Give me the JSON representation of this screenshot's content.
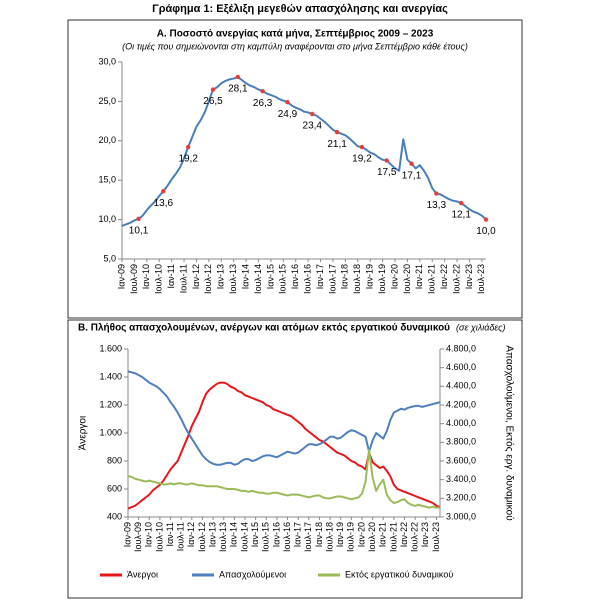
{
  "title": "Γράφημα 1: Εξέλιξη μεγεθών απασχόλησης και ανεργίας",
  "chart_data": [
    {
      "type": "line",
      "title": "Α. Ποσοστό ανεργίας κατά μήνα, Σεπτέμβριος 2009 – 2023",
      "subtitle": "(Οι τιμές που σημειώνονται στη καμπύλη αναφέρονται στο μήνα Σεπτέμβριο κάθε έτους)",
      "categories": [
        "Ιαν-09",
        null,
        null,
        "Ιουλ-09",
        null,
        null,
        "Ιαν-10",
        null,
        null,
        "Ιουλ-10",
        null,
        null,
        "Ιαν-11",
        null,
        null,
        "Ιουλ-11",
        null,
        null,
        "Ιαν-12",
        null,
        null,
        "Ιουλ-12",
        null,
        null,
        "Ιαν-13",
        null,
        null,
        "Ιουλ-13",
        null,
        null,
        "Ιαν-14",
        null,
        null,
        "Ιουλ-14",
        null,
        null,
        "Ιαν-15",
        null,
        null,
        "Ιουλ-15",
        null,
        null,
        "Ιαν-16",
        null,
        null,
        "Ιουλ-16",
        null,
        null,
        "Ιαν-17",
        null,
        null,
        "Ιουλ-17",
        null,
        null,
        "Ιαν-18",
        null,
        null,
        "Ιουλ-18",
        null,
        null,
        "Ιαν-19",
        null,
        null,
        "Ιουλ-19",
        null,
        null,
        "Ιαν-20",
        null,
        null,
        "Ιουλ-20",
        null,
        null,
        "Ιαν-21",
        null,
        null,
        "Ιουλ-21",
        null,
        null,
        "Ιαν-22",
        null,
        null,
        "Ιουλ-22",
        null,
        null,
        "Ιαν-23",
        null,
        null,
        "Ιουλ-23",
        null
      ],
      "series": [
        {
          "color": "#4a7ebb",
          "marker_color": "#e0403a",
          "values": [
            9.2,
            9.4,
            9.6,
            9.9,
            10.1,
            10.5,
            11.2,
            11.8,
            12.3,
            13.0,
            13.6,
            14.3,
            15.1,
            15.8,
            16.6,
            17.8,
            19.2,
            20.5,
            21.8,
            22.6,
            23.6,
            25.0,
            26.5,
            26.8,
            27.3,
            27.6,
            27.8,
            27.9,
            28.1,
            27.7,
            27.3,
            27.0,
            26.8,
            26.5,
            26.3,
            26.0,
            25.8,
            25.6,
            25.3,
            25.1,
            24.9,
            24.5,
            24.2,
            24.0,
            23.7,
            23.6,
            23.4,
            23.2,
            22.8,
            22.4,
            21.9,
            21.4,
            21.1,
            20.9,
            20.7,
            20.3,
            19.8,
            19.3,
            19.2,
            18.9,
            18.5,
            18.3,
            17.9,
            17.6,
            17.5,
            17.0,
            16.5,
            16.2,
            20.2,
            17.6,
            17.1,
            16.5,
            16.9,
            16.2,
            15.3,
            14.0,
            13.3,
            13.2,
            12.9,
            12.6,
            12.4,
            12.3,
            12.1,
            11.7,
            11.3,
            11.0,
            10.8,
            10.5,
            10.0
          ],
          "value_labels": [
            null,
            null,
            null,
            null,
            "10,1",
            null,
            null,
            null,
            null,
            null,
            "13,6",
            null,
            null,
            null,
            null,
            null,
            "19,2",
            null,
            null,
            null,
            null,
            null,
            "26,5",
            null,
            null,
            null,
            null,
            null,
            "28,1",
            null,
            null,
            null,
            null,
            null,
            "26,3",
            null,
            null,
            null,
            null,
            null,
            "24,9",
            null,
            null,
            null,
            null,
            null,
            "23,4",
            null,
            null,
            null,
            null,
            null,
            "21,1",
            null,
            null,
            null,
            null,
            null,
            "19,2",
            null,
            null,
            null,
            null,
            null,
            "17,5",
            null,
            null,
            null,
            null,
            null,
            "17,1",
            null,
            null,
            null,
            null,
            null,
            "13,3",
            null,
            null,
            null,
            null,
            null,
            "12,1",
            null,
            null,
            null,
            null,
            null,
            "10,0"
          ]
        }
      ],
      "ylim": [
        5,
        30
      ],
      "yticks": [
        {
          "value": 5,
          "label": "5,0"
        },
        {
          "value": 10,
          "label": "10,0"
        },
        {
          "value": 15,
          "label": "15,0"
        },
        {
          "value": 20,
          "label": "20,0"
        },
        {
          "value": 25,
          "label": "25,0"
        },
        {
          "value": 30,
          "label": "30,0"
        }
      ],
      "grid": false
    },
    {
      "type": "line",
      "title": "Β. Πλήθος απασχολουμένων, ανέργων και ατόμων εκτός εργατικού δυναμικού",
      "subtitle": "(σε χιλιάδες)",
      "ylabel": "Άνεργοι",
      "y2label": "Απασχολούμενοι, Εκτός εργ. δυναμικού",
      "categories": [
        "Ιαν-09",
        null,
        null,
        "Ιουλ-09",
        null,
        null,
        "Ιαν-10",
        null,
        null,
        "Ιουλ-10",
        null,
        null,
        "Ιαν-11",
        null,
        null,
        "Ιουλ-11",
        null,
        null,
        "Ιαν-12",
        null,
        null,
        "Ιουλ-12",
        null,
        null,
        "Ιαν-13",
        null,
        null,
        "Ιουλ-13",
        null,
        null,
        "Ιαν-14",
        null,
        null,
        "Ιουλ-14",
        null,
        null,
        "Ιαν-15",
        null,
        null,
        "Ιουλ-15",
        null,
        null,
        "Ιαν-16",
        null,
        null,
        "Ιουλ-16",
        null,
        null,
        "Ιαν-17",
        null,
        null,
        "Ιουλ-17",
        null,
        null,
        "Ιαν-18",
        null,
        null,
        "Ιουλ-18",
        null,
        null,
        "Ιαν-19",
        null,
        null,
        "Ιουλ-19",
        null,
        null,
        "Ιαν-20",
        null,
        null,
        "Ιουλ-20",
        null,
        null,
        "Ιαν-21",
        null,
        null,
        "Ιουλ-21",
        null,
        null,
        "Ιαν-22",
        null,
        null,
        "Ιουλ-22",
        null,
        null,
        "Ιαν-23",
        null,
        null,
        "Ιουλ-23",
        null
      ],
      "series": [
        {
          "name": "Άνεργοι",
          "color": "#e8161b",
          "values": [
            460,
            470,
            480,
            500,
            520,
            540,
            560,
            590,
            610,
            630,
            660,
            700,
            740,
            770,
            800,
            860,
            920,
            980,
            1050,
            1100,
            1150,
            1220,
            1280,
            1310,
            1330,
            1350,
            1360,
            1360,
            1350,
            1330,
            1320,
            1300,
            1290,
            1270,
            1260,
            1250,
            1240,
            1230,
            1220,
            1200,
            1190,
            1170,
            1160,
            1150,
            1140,
            1130,
            1120,
            1100,
            1080,
            1060,
            1030,
            1010,
            990,
            970,
            950,
            940,
            920,
            900,
            880,
            860,
            850,
            840,
            820,
            800,
            790,
            770,
            760,
            740,
            860,
            790,
            770,
            750,
            760,
            730,
            690,
            630,
            600,
            590,
            580,
            570,
            560,
            550,
            540,
            530,
            520,
            510,
            500,
            480,
            470
          ]
        },
        {
          "name": "Απασχολούμενοι",
          "color": "#4f7fbf",
          "axis": "y2",
          "values": [
            4560,
            4550,
            4540,
            4520,
            4500,
            4470,
            4440,
            4420,
            4400,
            4370,
            4330,
            4290,
            4230,
            4180,
            4120,
            4050,
            3970,
            3900,
            3840,
            3780,
            3720,
            3660,
            3620,
            3590,
            3570,
            3560,
            3560,
            3570,
            3580,
            3580,
            3560,
            3570,
            3600,
            3620,
            3620,
            3600,
            3610,
            3630,
            3650,
            3660,
            3660,
            3650,
            3640,
            3660,
            3680,
            3700,
            3690,
            3680,
            3690,
            3720,
            3750,
            3780,
            3780,
            3770,
            3780,
            3800,
            3830,
            3860,
            3860,
            3840,
            3850,
            3880,
            3910,
            3930,
            3920,
            3900,
            3880,
            3860,
            3700,
            3820,
            3900,
            3870,
            3840,
            3920,
            4040,
            4120,
            4140,
            4160,
            4150,
            4170,
            4180,
            4190,
            4190,
            4180,
            4190,
            4200,
            4210,
            4220,
            4230
          ]
        },
        {
          "name": "Εκτός εργατικού δυναμικού",
          "color": "#9bbb59",
          "axis": "y2",
          "values": [
            3440,
            3430,
            3410,
            3400,
            3390,
            3380,
            3390,
            3380,
            3370,
            3360,
            3350,
            3350,
            3360,
            3350,
            3360,
            3360,
            3350,
            3350,
            3360,
            3350,
            3340,
            3340,
            3330,
            3330,
            3330,
            3330,
            3320,
            3310,
            3300,
            3300,
            3300,
            3290,
            3280,
            3280,
            3270,
            3280,
            3270,
            3260,
            3260,
            3250,
            3250,
            3260,
            3260,
            3250,
            3240,
            3230,
            3240,
            3240,
            3240,
            3230,
            3220,
            3210,
            3220,
            3230,
            3230,
            3210,
            3200,
            3200,
            3210,
            3220,
            3220,
            3210,
            3200,
            3190,
            3200,
            3210,
            3250,
            3380,
            3720,
            3420,
            3280,
            3350,
            3400,
            3240,
            3180,
            3150,
            3160,
            3180,
            3190,
            3150,
            3130,
            3120,
            3130,
            3120,
            3110,
            3100,
            3110,
            3100,
            3100
          ]
        }
      ],
      "ylim": [
        400,
        1600
      ],
      "yticks": [
        400,
        600,
        800,
        {
          "value": 1000,
          "label": "1.000"
        },
        {
          "value": 1200,
          "label": "1.200"
        },
        {
          "value": 1400,
          "label": "1.400"
        },
        {
          "value": 1600,
          "label": "1.600"
        }
      ],
      "y2lim": [
        3000,
        4800
      ],
      "y2ticks": [
        {
          "value": 3000,
          "label": "3.000,0"
        },
        {
          "value": 3200,
          "label": "3.200,0"
        },
        {
          "value": 3400,
          "label": "3.400,0"
        },
        {
          "value": 3600,
          "label": "3.600,0"
        },
        {
          "value": 3800,
          "label": "3.800,0"
        },
        {
          "value": 4000,
          "label": "4.000,0"
        },
        {
          "value": 4200,
          "label": "4.200,0"
        },
        {
          "value": 4400,
          "label": "4.400,0"
        },
        {
          "value": 4600,
          "label": "4.600,0"
        },
        {
          "value": 4800,
          "label": "4.800,0"
        }
      ],
      "grid": false,
      "legend": "bottom"
    }
  ]
}
